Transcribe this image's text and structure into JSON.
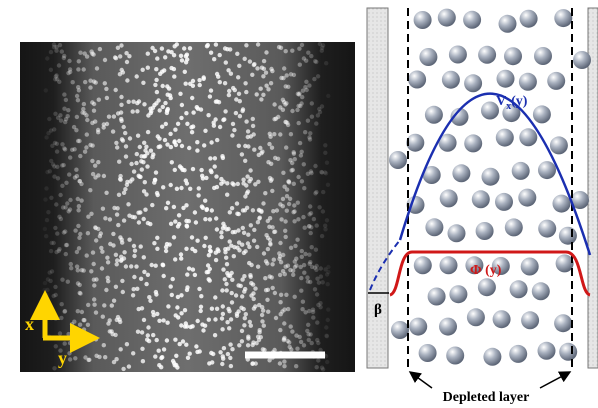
{
  "microscopy": {
    "axis_x": "x",
    "axis_y": "y"
  },
  "schematic": {
    "velocity_label": "V",
    "velocity_sub": "x",
    "velocity_arg": "(y)",
    "concentration_label": "Φ (y)",
    "slip_label": "β",
    "depleted_label": "Depleted layer"
  }
}
